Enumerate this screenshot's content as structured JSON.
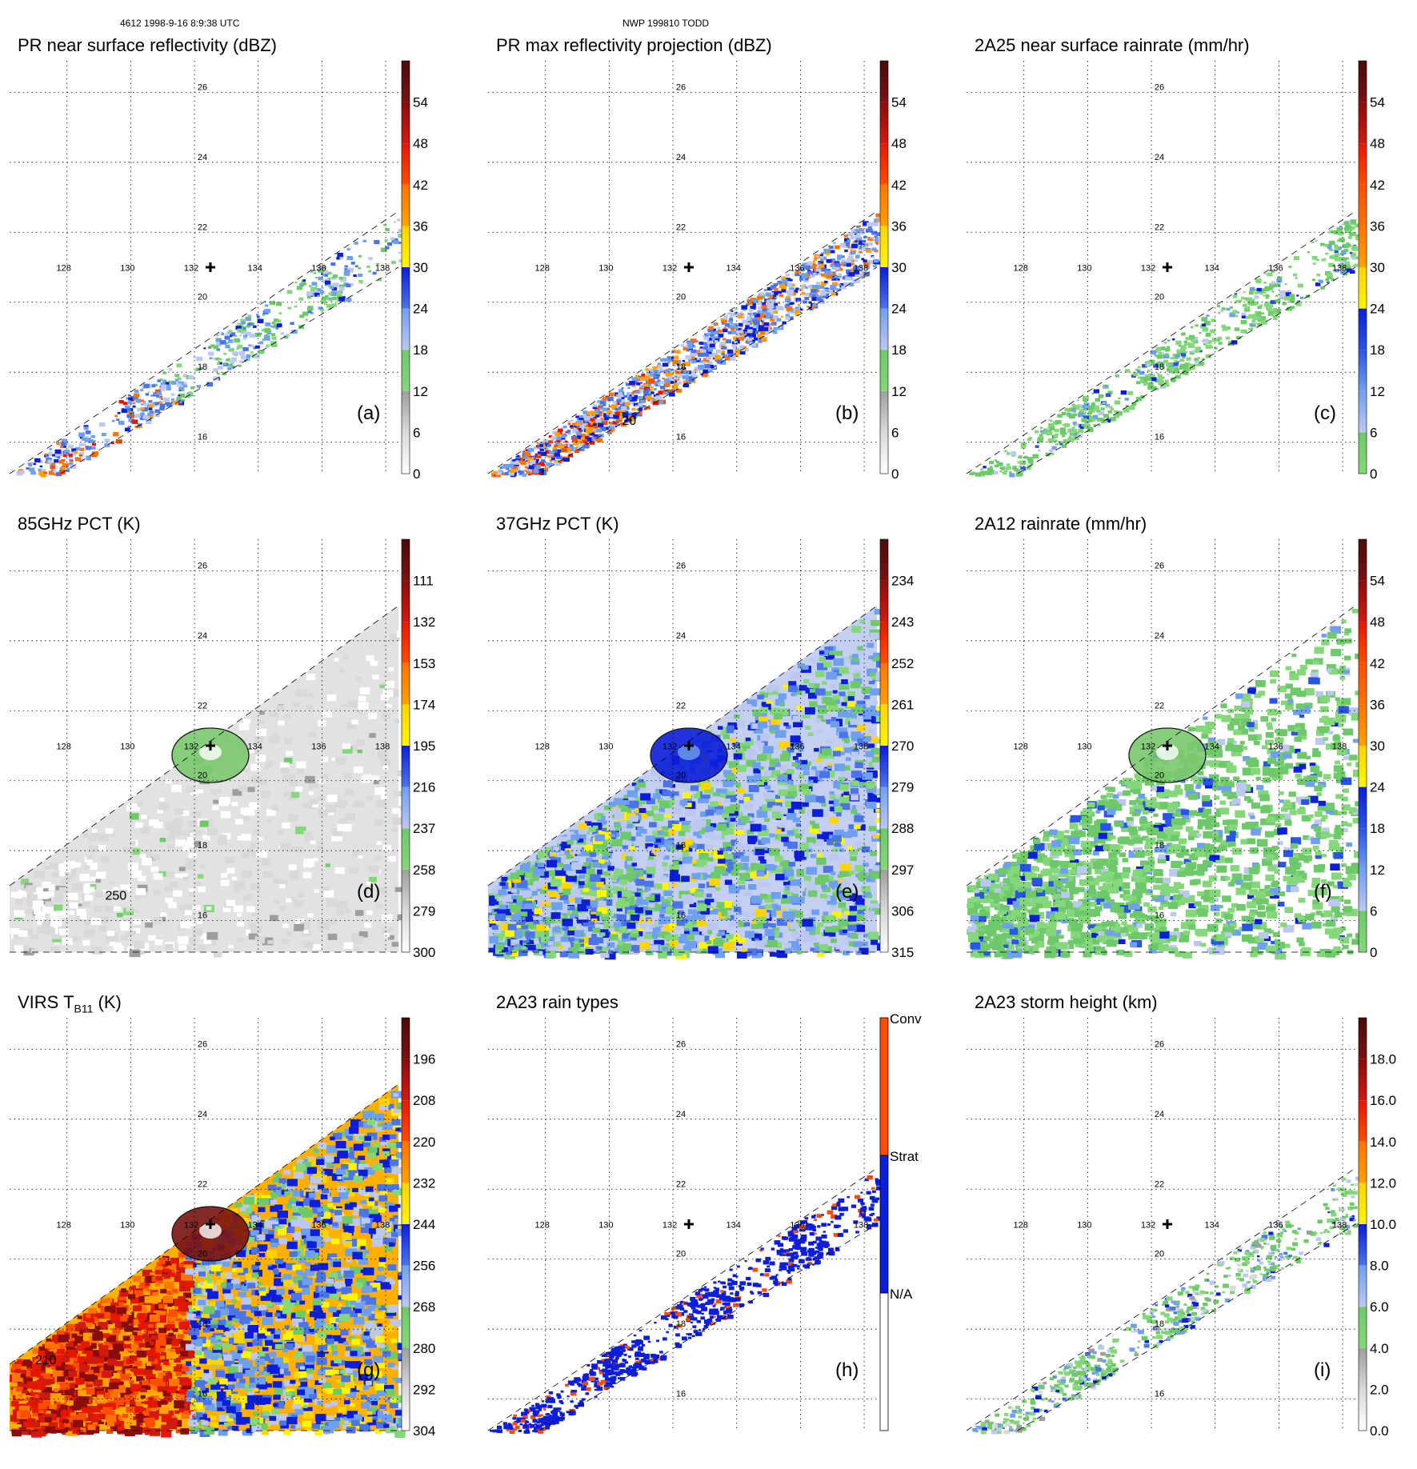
{
  "header": {
    "left": "4612 1998-9-16 8:9:38 UTC",
    "center": "NWP 199810 TODD"
  },
  "chart_data": [
    {
      "id": "a",
      "type": "heatmap",
      "title": "PR near surface reflectivity (dBZ)",
      "panel_label": "(a)",
      "swath": "narrow",
      "field": "pr_nsr",
      "lon_ticks": [
        128,
        130,
        132,
        134,
        136,
        138
      ],
      "lat_ticks": [
        16,
        18,
        20,
        22,
        24,
        26
      ],
      "lon_range": [
        126.2,
        138.4
      ],
      "lat_range": [
        15.1,
        26.9
      ],
      "marker": {
        "lon": 132.5,
        "lat": 21
      },
      "colorbar": {
        "ticks": [
          "0",
          "6",
          "12",
          "18",
          "24",
          "30",
          "36",
          "42",
          "48",
          "54"
        ],
        "bands": [
          [
            "#ffffff",
            "#d9d9d9"
          ],
          [
            "#d9d9d9",
            "#9e9e9e"
          ],
          [
            "#84d879",
            "#6ec96a"
          ],
          [
            "#bcc8f0",
            "#6fa0ef"
          ],
          [
            "#4b74e8",
            "#0c1ed9"
          ],
          [
            "#fff600",
            "#ffd400"
          ],
          [
            "#ffa100",
            "#ff7400"
          ],
          [
            "#ff4d00",
            "#e61600"
          ],
          [
            "#d01a10",
            "#8a0c0c"
          ],
          [
            "#7a1212",
            "#4a0b0b"
          ]
        ]
      }
    },
    {
      "id": "b",
      "type": "heatmap",
      "title": "PR max reflectivity projection (dBZ)",
      "panel_label": "(b)",
      "swath": "narrow",
      "field": "pr_max",
      "lon_ticks": [
        128,
        130,
        132,
        134,
        136,
        138
      ],
      "lat_ticks": [
        16,
        18,
        20,
        22,
        24,
        26
      ],
      "lon_range": [
        126.2,
        138.4
      ],
      "lat_range": [
        15.1,
        26.9
      ],
      "marker": {
        "lon": 132.5,
        "lat": 21
      },
      "contour_labels": [
        "20"
      ],
      "colorbar": {
        "ticks": [
          "0",
          "6",
          "12",
          "18",
          "24",
          "30",
          "36",
          "42",
          "48",
          "54"
        ],
        "bands": [
          [
            "#ffffff",
            "#d9d9d9"
          ],
          [
            "#d9d9d9",
            "#9e9e9e"
          ],
          [
            "#84d879",
            "#6ec96a"
          ],
          [
            "#bcc8f0",
            "#6fa0ef"
          ],
          [
            "#4b74e8",
            "#0c1ed9"
          ],
          [
            "#fff600",
            "#ffd400"
          ],
          [
            "#ffa100",
            "#ff7400"
          ],
          [
            "#ff4d00",
            "#e61600"
          ],
          [
            "#d01a10",
            "#8a0c0c"
          ],
          [
            "#7a1212",
            "#4a0b0b"
          ]
        ]
      }
    },
    {
      "id": "c",
      "type": "heatmap",
      "title": "2A25 near surface rainrate (mm/hr)",
      "panel_label": "(c)",
      "swath": "narrow",
      "field": "rain25",
      "lon_ticks": [
        128,
        130,
        132,
        134,
        136,
        138
      ],
      "lat_ticks": [
        16,
        18,
        20,
        22,
        24,
        26
      ],
      "lon_range": [
        126.2,
        138.4
      ],
      "lat_range": [
        15.1,
        26.9
      ],
      "marker": {
        "lon": 132.5,
        "lat": 21
      },
      "colorbar": {
        "ticks": [
          "0",
          "6",
          "12",
          "18",
          "24",
          "30",
          "36",
          "42",
          "48",
          "54"
        ],
        "bands": [
          [
            "#84d879",
            "#6ec96a"
          ],
          [
            "#bcc8f0",
            "#6fa0ef"
          ],
          [
            "#6fa0ef",
            "#2a54e3"
          ],
          [
            "#2a54e3",
            "#0c1ed9"
          ],
          [
            "#fff600",
            "#ffd400"
          ],
          [
            "#ffa100",
            "#ff7400"
          ],
          [
            "#ff7400",
            "#ff4d00"
          ],
          [
            "#ff4d00",
            "#e61600"
          ],
          [
            "#d01a10",
            "#8a0c0c"
          ],
          [
            "#7a1212",
            "#4a0b0b"
          ]
        ]
      }
    },
    {
      "id": "d",
      "type": "heatmap",
      "title": "85GHz PCT (K)",
      "panel_label": "(d)",
      "swath": "wide",
      "field": "pct85",
      "lon_ticks": [
        128,
        130,
        132,
        134,
        136,
        138
      ],
      "lat_ticks": [
        16,
        18,
        20,
        22,
        24,
        26
      ],
      "lon_range": [
        126.2,
        138.4
      ],
      "lat_range": [
        15.1,
        26.9
      ],
      "marker": {
        "lon": 132.5,
        "lat": 21
      },
      "contour_labels": [
        "250"
      ],
      "colorbar": {
        "ticks": [
          "300",
          "279",
          "258",
          "237",
          "216",
          "195",
          "174",
          "153",
          "132",
          "111"
        ],
        "bands": [
          [
            "#ffffff",
            "#d9d9d9"
          ],
          [
            "#d9d9d9",
            "#9e9e9e"
          ],
          [
            "#84d879",
            "#6ec96a"
          ],
          [
            "#bcc8f0",
            "#6fa0ef"
          ],
          [
            "#4b74e8",
            "#0c1ed9"
          ],
          [
            "#fff600",
            "#ffd400"
          ],
          [
            "#ffa100",
            "#ff7400"
          ],
          [
            "#ff4d00",
            "#e61600"
          ],
          [
            "#d01a10",
            "#8a0c0c"
          ],
          [
            "#7a1212",
            "#4a0b0b"
          ]
        ]
      }
    },
    {
      "id": "e",
      "type": "heatmap",
      "title": "37GHz PCT (K)",
      "panel_label": "(e)",
      "swath": "wide",
      "field": "pct37",
      "lon_ticks": [
        128,
        130,
        132,
        134,
        136,
        138
      ],
      "lat_ticks": [
        16,
        18,
        20,
        22,
        24,
        26
      ],
      "lon_range": [
        126.2,
        138.4
      ],
      "lat_range": [
        15.1,
        26.9
      ],
      "marker": {
        "lon": 132.5,
        "lat": 21
      },
      "colorbar": {
        "ticks": [
          "315",
          "306",
          "297",
          "288",
          "279",
          "270",
          "261",
          "252",
          "243",
          "234"
        ],
        "bands": [
          [
            "#ffffff",
            "#d9d9d9"
          ],
          [
            "#d9d9d9",
            "#9e9e9e"
          ],
          [
            "#84d879",
            "#6ec96a"
          ],
          [
            "#bcc8f0",
            "#6fa0ef"
          ],
          [
            "#4b74e8",
            "#0c1ed9"
          ],
          [
            "#fff600",
            "#ffd400"
          ],
          [
            "#ffa100",
            "#ff7400"
          ],
          [
            "#ff4d00",
            "#e61600"
          ],
          [
            "#d01a10",
            "#8a0c0c"
          ],
          [
            "#7a1212",
            "#4a0b0b"
          ]
        ]
      }
    },
    {
      "id": "f",
      "type": "heatmap",
      "title": "2A12 rainrate (mm/hr)",
      "panel_label": "(f)",
      "swath": "wide",
      "field": "rain12",
      "lon_ticks": [
        128,
        130,
        132,
        134,
        136,
        138
      ],
      "lat_ticks": [
        16,
        18,
        20,
        22,
        24,
        26
      ],
      "lon_range": [
        126.2,
        138.4
      ],
      "lat_range": [
        15.1,
        26.9
      ],
      "marker": {
        "lon": 132.5,
        "lat": 21
      },
      "colorbar": {
        "ticks": [
          "0",
          "6",
          "12",
          "18",
          "24",
          "30",
          "36",
          "42",
          "48",
          "54"
        ],
        "bands": [
          [
            "#84d879",
            "#6ec96a"
          ],
          [
            "#bcc8f0",
            "#6fa0ef"
          ],
          [
            "#6fa0ef",
            "#2a54e3"
          ],
          [
            "#2a54e3",
            "#0c1ed9"
          ],
          [
            "#fff600",
            "#ffd400"
          ],
          [
            "#ffa100",
            "#ff7400"
          ],
          [
            "#ff7400",
            "#ff4d00"
          ],
          [
            "#ff4d00",
            "#e61600"
          ],
          [
            "#d01a10",
            "#8a0c0c"
          ],
          [
            "#7a1212",
            "#4a0b0b"
          ]
        ]
      }
    },
    {
      "id": "g",
      "type": "heatmap",
      "title": "VIRS T",
      "title_sub": "B11",
      "title_suffix": " (K)",
      "panel_label": "(g)",
      "swath": "wide",
      "field": "virs",
      "lon_ticks": [
        128,
        130,
        132,
        134,
        136,
        138
      ],
      "lat_ticks": [
        16,
        18,
        20,
        22,
        24,
        26
      ],
      "lon_range": [
        126.2,
        138.4
      ],
      "lat_range": [
        15.1,
        26.9
      ],
      "marker": {
        "lon": 132.5,
        "lat": 21
      },
      "contour_labels": [
        "210"
      ],
      "colorbar": {
        "ticks": [
          "304",
          "292",
          "280",
          "268",
          "256",
          "244",
          "232",
          "220",
          "208",
          "196"
        ],
        "bands": [
          [
            "#ffffff",
            "#d9d9d9"
          ],
          [
            "#d9d9d9",
            "#9e9e9e"
          ],
          [
            "#84d879",
            "#6ec96a"
          ],
          [
            "#bcc8f0",
            "#6fa0ef"
          ],
          [
            "#4b74e8",
            "#0c1ed9"
          ],
          [
            "#fff600",
            "#ffd400"
          ],
          [
            "#ffa100",
            "#ff7400"
          ],
          [
            "#ff4d00",
            "#e61600"
          ],
          [
            "#d01a10",
            "#8a0c0c"
          ],
          [
            "#7a1212",
            "#4a0b0b"
          ]
        ]
      }
    },
    {
      "id": "h",
      "type": "heatmap",
      "title": "2A23 rain types",
      "panel_label": "(h)",
      "swath": "narrow",
      "field": "rtype",
      "lon_ticks": [
        128,
        130,
        132,
        134,
        136,
        138
      ],
      "lat_ticks": [
        16,
        18,
        20,
        22,
        24,
        26
      ],
      "lon_range": [
        126.2,
        138.4
      ],
      "lat_range": [
        15.1,
        26.9
      ],
      "marker": {
        "lon": 132.5,
        "lat": 21
      },
      "colorbar": {
        "categorical": true,
        "labels": [
          "N/A",
          "Strat",
          "Conv"
        ],
        "colors": [
          "#ffffff",
          "#0c1ed9",
          "#ff4d00"
        ]
      }
    },
    {
      "id": "i",
      "type": "heatmap",
      "title": "2A23 storm height (km)",
      "panel_label": "(i)",
      "swath": "narrow",
      "field": "sheight",
      "lon_ticks": [
        128,
        130,
        132,
        134,
        136,
        138
      ],
      "lat_ticks": [
        16,
        18,
        20,
        22,
        24,
        26
      ],
      "lon_range": [
        126.2,
        138.4
      ],
      "lat_range": [
        15.1,
        26.9
      ],
      "marker": {
        "lon": 132.5,
        "lat": 21
      },
      "colorbar": {
        "ticks": [
          "0.0",
          "2.0",
          "4.0",
          "6.0",
          "8.0",
          "10.0",
          "12.0",
          "14.0",
          "16.0",
          "18.0"
        ],
        "bands": [
          [
            "#ffffff",
            "#d9d9d9"
          ],
          [
            "#d9d9d9",
            "#9e9e9e"
          ],
          [
            "#84d879",
            "#6ec96a"
          ],
          [
            "#bcc8f0",
            "#6fa0ef"
          ],
          [
            "#4b74e8",
            "#0c1ed9"
          ],
          [
            "#fff600",
            "#ffd400"
          ],
          [
            "#ffa100",
            "#ff7400"
          ],
          [
            "#ff4d00",
            "#e61600"
          ],
          [
            "#d01a10",
            "#8a0c0c"
          ],
          [
            "#7a1212",
            "#4a0b0b"
          ]
        ]
      }
    }
  ]
}
